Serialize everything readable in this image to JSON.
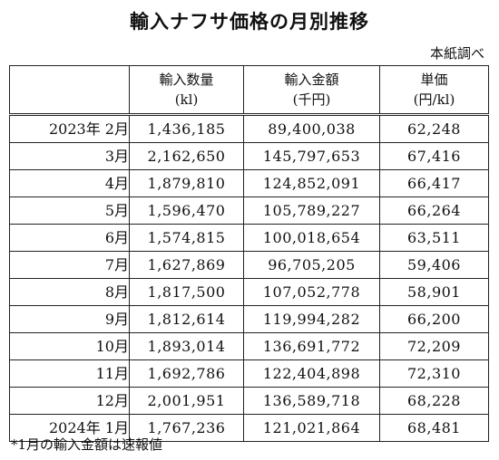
{
  "title": "輸入ナフサ価格の月別推移",
  "source": "本紙調べ",
  "headers": [
    {
      "line1": "輸入数量",
      "line2": "(kl)"
    },
    {
      "line1": "輸入金額",
      "line2": "(千円)"
    },
    {
      "line1": "単価",
      "line2": "(円/kl)"
    }
  ],
  "rows": [
    {
      "period": "2023年 2月",
      "quantity": "1,436,185",
      "amount": "89,400,038",
      "unit_price": "62,248"
    },
    {
      "period": "3月",
      "quantity": "2,162,650",
      "amount": "145,797,653",
      "unit_price": "67,416"
    },
    {
      "period": "4月",
      "quantity": "1,879,810",
      "amount": "124,852,091",
      "unit_price": "66,417"
    },
    {
      "period": "5月",
      "quantity": "1,596,470",
      "amount": "105,789,227",
      "unit_price": "66,264"
    },
    {
      "period": "6月",
      "quantity": "1,574,815",
      "amount": "100,018,654",
      "unit_price": "63,511"
    },
    {
      "period": "7月",
      "quantity": "1,627,869",
      "amount": "96,705,205",
      "unit_price": "59,406"
    },
    {
      "period": "8月",
      "quantity": "1,817,500",
      "amount": "107,052,778",
      "unit_price": "58,901"
    },
    {
      "period": "9月",
      "quantity": "1,812,614",
      "amount": "119,994,282",
      "unit_price": "66,200"
    },
    {
      "period": "10月",
      "quantity": "1,893,014",
      "amount": "136,691,772",
      "unit_price": "72,209"
    },
    {
      "period": "11月",
      "quantity": "1,692,786",
      "amount": "122,404,898",
      "unit_price": "72,310"
    },
    {
      "period": "12月",
      "quantity": "2,001,951",
      "amount": "136,589,718",
      "unit_price": "68,228"
    },
    {
      "period": "2024年 1月",
      "quantity": "1,767,236",
      "amount": "121,021,864",
      "unit_price": "68,481"
    }
  ],
  "footnote": "*1月の輸入金額は速報値"
}
